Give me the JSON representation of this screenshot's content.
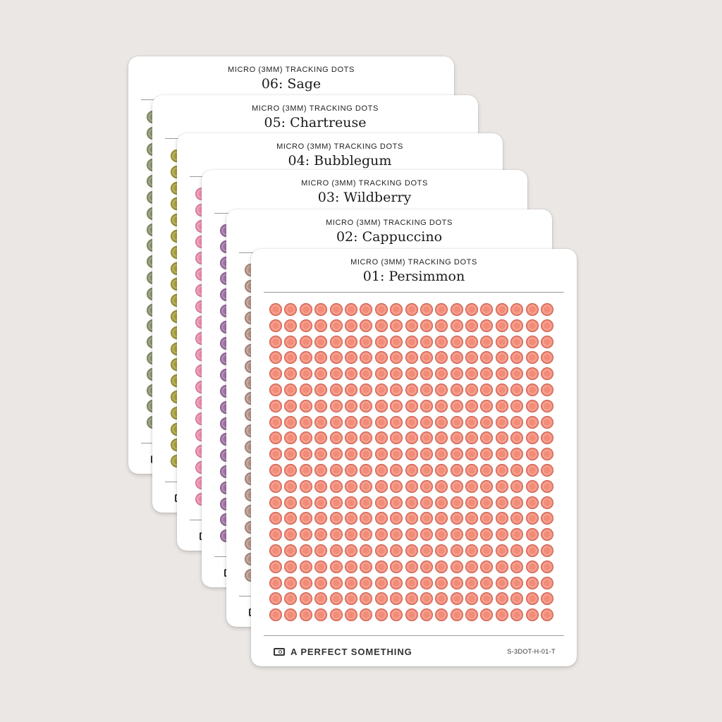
{
  "sheets": [
    {
      "eyebrow": "MICRO (3MM) TRACKING DOTS",
      "title": "06: Sage",
      "dot_fill": "#8c9670",
      "dot_ring": "#6c7552"
    },
    {
      "eyebrow": "MICRO (3MM) TRACKING DOTS",
      "title": "05: Chartreuse",
      "dot_fill": "#a8a03c",
      "dot_ring": "#827b25"
    },
    {
      "eyebrow": "MICRO (3MM) TRACKING DOTS",
      "title": "04: Bubblegum",
      "dot_fill": "#ec8fac",
      "dot_ring": "#c96d8b"
    },
    {
      "eyebrow": "MICRO (3MM) TRACKING DOTS",
      "title": "03: Wildberry",
      "dot_fill": "#a174a6",
      "dot_ring": "#7f5384"
    },
    {
      "eyebrow": "MICRO (3MM) TRACKING DOTS",
      "title": "02: Cappuccino",
      "dot_fill": "#b8968a",
      "dot_ring": "#8e6f63"
    },
    {
      "eyebrow": "MICRO (3MM) TRACKING DOTS",
      "title": "01: Persimmon",
      "dot_fill": "#f28b77",
      "dot_ring": "#c8574a"
    }
  ],
  "dot_grid": {
    "columns": 19,
    "rows": 20
  },
  "brand": {
    "name": "A PERFECT SOMETHING",
    "icon": "brand-logo-icon"
  },
  "sku": "S-3DOT-H-01-T"
}
